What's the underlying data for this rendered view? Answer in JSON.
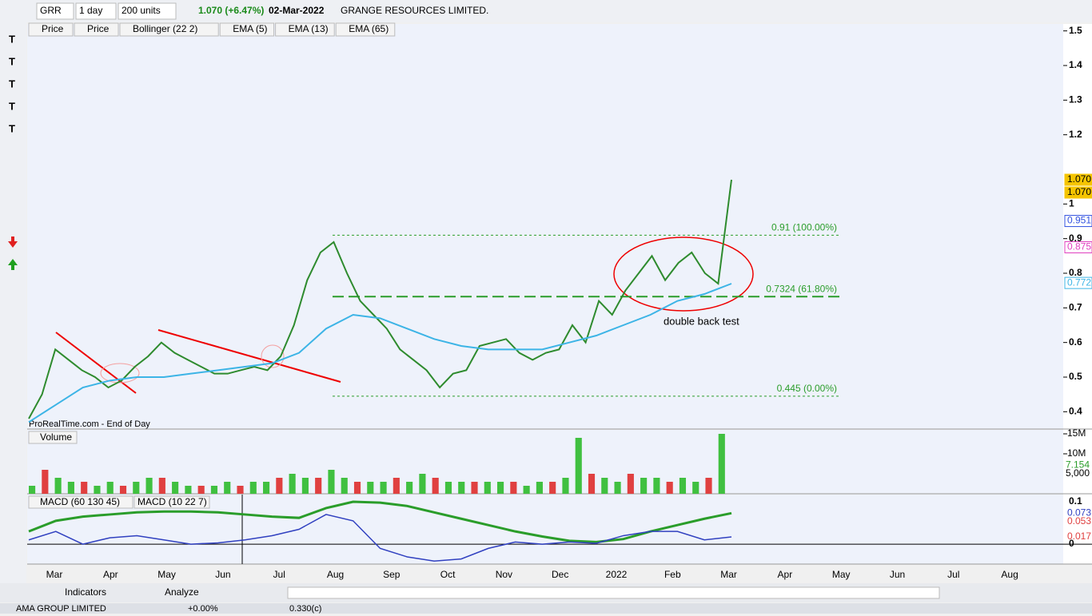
{
  "toolbar": {
    "symbol": "GRR",
    "period": "1 day",
    "units": "200 units",
    "change": "1.070 (+6.47%)",
    "date": "02-Mar-2022",
    "name": "GRANGE RESOURCES LIMITED."
  },
  "legend": [
    "Price",
    "Price",
    "Bollinger (22 2)",
    "EMA (5)",
    "EMA (13)",
    "EMA (65)"
  ],
  "source": "ProRealTime.com - End of Day",
  "annotation": "double back test",
  "months": [
    "Mar",
    "Apr",
    "May",
    "Jun",
    "Jul",
    "Aug",
    "Sep",
    "Oct",
    "Nov",
    "Dec",
    "2022",
    "Feb",
    "Mar",
    "Apr",
    "May",
    "Jun",
    "Jul",
    "Aug"
  ],
  "price_chart": {
    "type": "line",
    "ylim": [
      0.35,
      1.52
    ],
    "yticks": [
      1.5,
      1.4,
      1.3,
      1.2,
      1,
      0.9,
      0.8,
      0.7,
      0.6,
      0.5,
      0.4
    ],
    "series": [
      {
        "name": "Price",
        "color": "#2e8b2e",
        "values": [
          0.38,
          0.45,
          0.58,
          0.55,
          0.52,
          0.5,
          0.47,
          0.49,
          0.53,
          0.56,
          0.6,
          0.57,
          0.55,
          0.53,
          0.51,
          0.51,
          0.52,
          0.53,
          0.52,
          0.56,
          0.65,
          0.78,
          0.86,
          0.89,
          0.8,
          0.72,
          0.68,
          0.64,
          0.58,
          0.55,
          0.52,
          0.47,
          0.51,
          0.52,
          0.59,
          0.6,
          0.61,
          0.57,
          0.55,
          0.57,
          0.58,
          0.65,
          0.6,
          0.72,
          0.68,
          0.75,
          0.8,
          0.85,
          0.78,
          0.83,
          0.86,
          0.8,
          0.77,
          1.07
        ]
      },
      {
        "name": "EMA (65)",
        "color": "#3cb4e6",
        "values": [
          0.37,
          0.42,
          0.47,
          0.49,
          0.5,
          0.5,
          0.51,
          0.52,
          0.53,
          0.54,
          0.57,
          0.64,
          0.68,
          0.67,
          0.64,
          0.61,
          0.59,
          0.58,
          0.58,
          0.58,
          0.6,
          0.62,
          0.65,
          0.68,
          0.72,
          0.74,
          0.77
        ]
      }
    ],
    "fib": [
      {
        "value": 0.91,
        "label": "0.91 (100.00%)"
      },
      {
        "value": 0.7324,
        "label": "0.7324 (61.80%)"
      },
      {
        "value": 0.445,
        "label": "0.445 (0.00%)"
      }
    ],
    "tags": [
      {
        "value": 1.07,
        "label": "1.070",
        "color": "#f5c400"
      },
      {
        "value": 1.07,
        "label": "1.070",
        "color": "#f5c400"
      },
      {
        "value": 0.951,
        "label": "0.951",
        "color": "#3050e0"
      },
      {
        "value": 0.875,
        "label": "0.875",
        "color": "#e040c0"
      },
      {
        "value": 0.772,
        "label": "0.772",
        "color": "#3cb4e6"
      }
    ]
  },
  "volume_chart": {
    "type": "bar",
    "title": "Volume",
    "ylim": [
      0,
      16
    ],
    "yticks": [
      {
        "value": 15,
        "label": "15M"
      },
      {
        "value": 10,
        "label": "10M"
      }
    ],
    "tags": [
      {
        "value": 7.154,
        "label": "7.154"
      },
      {
        "value": 5,
        "label": "5,000"
      }
    ],
    "values": [
      2,
      6,
      4,
      3,
      3,
      2,
      3,
      2,
      3,
      4,
      4,
      3,
      2,
      2,
      2,
      3,
      2,
      3,
      3,
      4,
      5,
      4,
      4,
      6,
      4,
      3,
      3,
      3,
      4,
      3,
      5,
      4,
      3,
      3,
      3,
      3,
      3,
      3,
      2,
      3,
      3,
      4,
      14,
      5,
      4,
      3,
      5,
      4,
      4,
      3,
      4,
      3,
      4,
      15
    ]
  },
  "macd_chart": {
    "type": "line",
    "title": "MACD (60 130 45)",
    "title2": "MACD (10 22 7)",
    "ylim": [
      -0.047,
      0.117
    ],
    "yticks": [
      0.1,
      0
    ],
    "tags": [
      {
        "value": 0.073,
        "label": "0.073"
      },
      {
        "value": 0.053,
        "label": "0.053"
      },
      {
        "value": 0.017,
        "label": "0.017"
      }
    ],
    "series": [
      {
        "name": "MACD (60 130 45)",
        "color": "#2a9d2a",
        "values": [
          0.03,
          0.055,
          0.065,
          0.07,
          0.075,
          0.077,
          0.077,
          0.075,
          0.07,
          0.065,
          0.062,
          0.085,
          0.1,
          0.098,
          0.09,
          0.075,
          0.06,
          0.045,
          0.03,
          0.018,
          0.008,
          0.005,
          0.012,
          0.03,
          0.045,
          0.06,
          0.073
        ]
      },
      {
        "name": "MACD (10 22 7)",
        "color": "#3040c0",
        "values": [
          0.01,
          0.03,
          0.0,
          0.015,
          0.02,
          0.01,
          0.0,
          0.003,
          0.01,
          0.02,
          0.035,
          0.07,
          0.055,
          -0.01,
          -0.03,
          -0.04,
          -0.035,
          -0.01,
          0.005,
          0.0,
          0.005,
          0.002,
          0.02,
          0.03,
          0.03,
          0.01,
          0.017
        ]
      }
    ]
  },
  "bottom": {
    "indicators": "Indicators",
    "analyze": "Analyze",
    "status_name": "AMA GROUP LIMITED",
    "status_change": "+0.00%",
    "status_price": "0.330(c)"
  }
}
